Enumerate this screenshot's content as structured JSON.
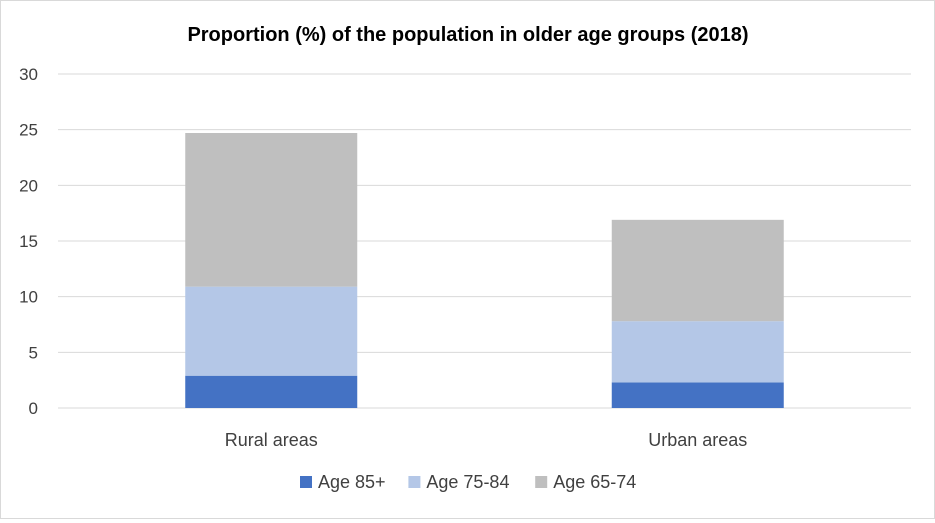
{
  "chart_data": {
    "type": "bar",
    "stacked": true,
    "title": "Proportion (%) of the population in older age groups (2018)",
    "xlabel": "",
    "ylabel": "",
    "categories": [
      "Rural areas",
      "Urban areas"
    ],
    "series": [
      {
        "name": "Age 85+",
        "values": [
          2.9,
          2.3
        ],
        "color": "#4472c4"
      },
      {
        "name": "Age 75-84",
        "values": [
          8.0,
          5.5
        ],
        "color": "#b4c7e7"
      },
      {
        "name": "Age 65-74",
        "values": [
          13.8,
          9.1
        ],
        "color": "#bfbfbf"
      }
    ],
    "ylim": [
      0,
      30
    ],
    "yticks": [
      "0",
      "5",
      "10",
      "15",
      "20",
      "25",
      "30"
    ],
    "grid": true,
    "legend_position": "bottom"
  }
}
